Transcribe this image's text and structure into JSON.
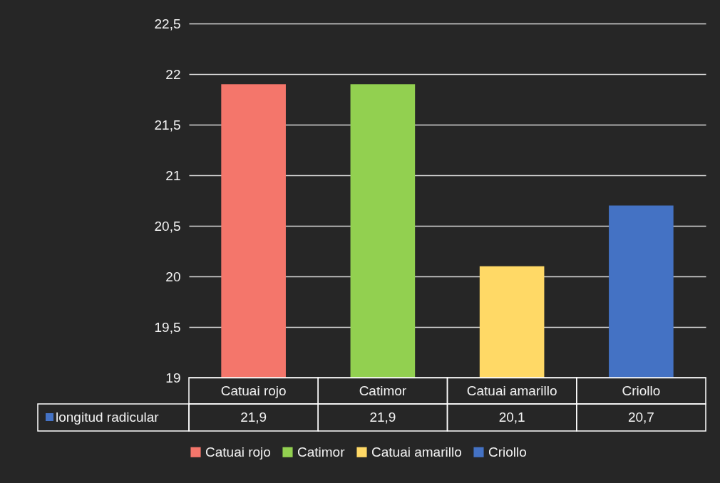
{
  "chart_data": {
    "type": "bar",
    "categories": [
      "Catuai rojo",
      "Catimor",
      "Catuai amarillo",
      "Criollo"
    ],
    "series": [
      {
        "name": "longitud radicular",
        "color": "#4472c4",
        "colors": [
          "#f4766b",
          "#92d050",
          "#ffd966",
          "#4472c4"
        ],
        "values": [
          21.9,
          21.9,
          20.1,
          20.7
        ],
        "value_labels": [
          "21,9",
          "21,9",
          "20,1",
          "20,7"
        ]
      }
    ],
    "ylim": [
      19,
      22.5
    ],
    "yticks": [
      19,
      {
        "value": 19.5,
        "label": "19,5"
      },
      20,
      {
        "value": 20.5,
        "label": "20,5"
      },
      21,
      {
        "value": 21.5,
        "label": "21,5"
      },
      22,
      {
        "value": 22.5,
        "label": "22,5"
      }
    ],
    "grid": "y",
    "legend": "bottom"
  }
}
